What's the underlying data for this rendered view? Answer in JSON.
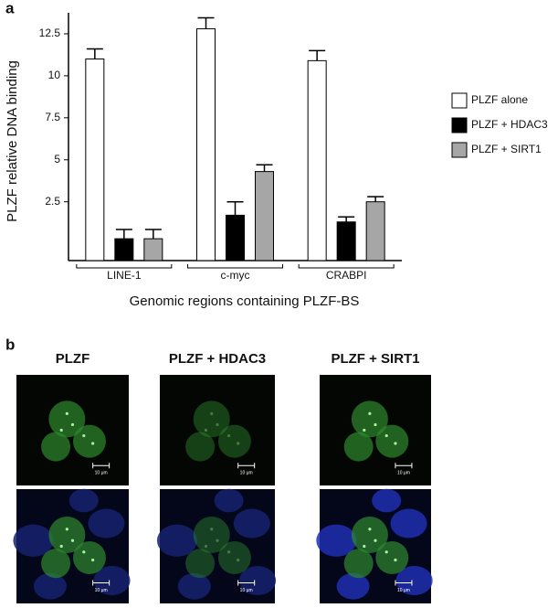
{
  "chart_data": {
    "type": "bar",
    "panel_label": "a",
    "y_label": "PLZF relative DNA binding",
    "x_label": "Genomic regions containing PLZF-BS",
    "categories": [
      "LINE-1",
      "c-myc",
      "CRABPI"
    ],
    "series": [
      {
        "name": "PLZF alone",
        "color": "#ffffff",
        "values": [
          11,
          12.8,
          10.9
        ],
        "errors": [
          0.6,
          0.65,
          0.6
        ]
      },
      {
        "name": "PLZF + HDAC3",
        "color": "#000000",
        "values": [
          0.3,
          1.7,
          1.3
        ],
        "errors": [
          0.55,
          0.8,
          0.3
        ]
      },
      {
        "name": "PLZF + SIRT1",
        "color": "#a6a6a6",
        "values": [
          0.3,
          4.3,
          2.5
        ],
        "errors": [
          0.55,
          0.4,
          0.3
        ]
      }
    ],
    "ylim": [
      -1,
      13.75
    ],
    "yticks": [
      2.5,
      5,
      7.5,
      10,
      12.5
    ],
    "grid": false,
    "legend": "right"
  },
  "panel_b": {
    "label": "b",
    "columns": [
      "PLZF",
      "PLZF + HDAC3",
      "PLZF + SIRT1"
    ],
    "scale_bar_label": "10 μm"
  }
}
